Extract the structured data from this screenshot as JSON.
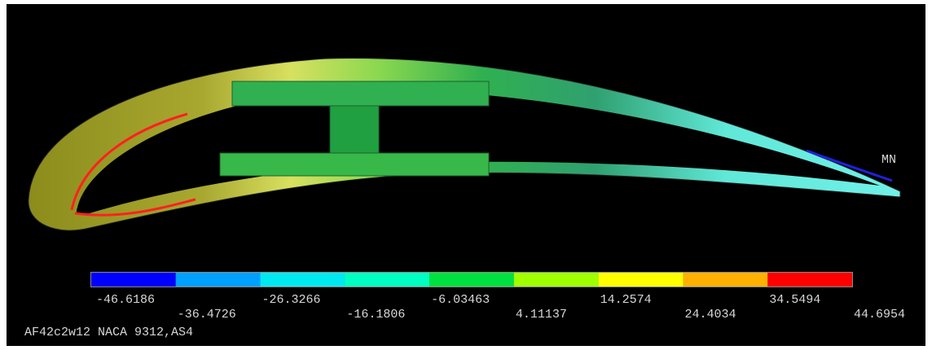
{
  "legend": {
    "values": [
      -46.6186,
      -36.4726,
      -26.3266,
      -16.1806,
      -6.03463,
      4.11137,
      14.2574,
      24.4034,
      34.5494,
      44.6954
    ],
    "colors": [
      "#0000ff",
      "#00a0ff",
      "#00e8f0",
      "#00ffc0",
      "#00e040",
      "#a0ff00",
      "#ffff00",
      "#ffb000",
      "#ff0000"
    ]
  },
  "marker": "MN",
  "footer": "AF42c2w12 NACA 9312,AS4"
}
